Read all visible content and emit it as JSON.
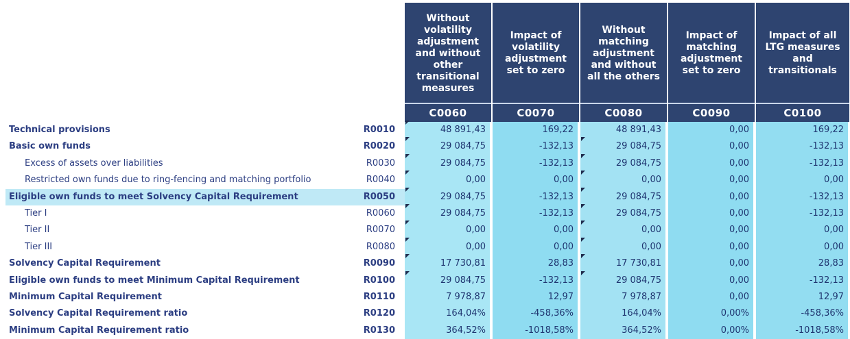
{
  "columns": [
    {
      "header": "Without volatility adjustment and without other transitional measures",
      "code": "C0060"
    },
    {
      "header": "Impact of volatility adjustment set to zero",
      "code": "C0070"
    },
    {
      "header": "Without matching adjustment and without all the others",
      "code": "C0080"
    },
    {
      "header": "Impact of matching adjustment set to zero",
      "code": "C0090"
    },
    {
      "header": "Impact of all LTG measures and transitionals",
      "code": "C0100"
    }
  ],
  "rows": [
    {
      "label": "Technical provisions",
      "code": "R0010",
      "bold": true,
      "indent": false,
      "values": [
        "48 891,43",
        "169,22",
        "48 891,43",
        "0,00",
        "169,22"
      ]
    },
    {
      "label": "Basic own funds",
      "code": "R0020",
      "bold": true,
      "indent": false,
      "values": [
        "29 084,75",
        "-132,13",
        "29 084,75",
        "0,00",
        "-132,13"
      ]
    },
    {
      "label": "Excess of assets over liabilities",
      "code": "R0030",
      "bold": false,
      "indent": true,
      "values": [
        "29 084,75",
        "-132,13",
        "29 084,75",
        "0,00",
        "-132,13"
      ]
    },
    {
      "label": "Restricted own funds due to ring-fencing and matching portfolio",
      "code": "R0040",
      "bold": false,
      "indent": true,
      "values": [
        "0,00",
        "0,00",
        "0,00",
        "0,00",
        "0,00"
      ]
    },
    {
      "label": "Eligible own funds to meet Solvency Capital Requirement",
      "code": "R0050",
      "bold": true,
      "indent": false,
      "values": [
        "29 084,75",
        "-132,13",
        "29 084,75",
        "0,00",
        "-132,13"
      ]
    },
    {
      "label": "Tier I",
      "code": "R0060",
      "bold": false,
      "indent": true,
      "values": [
        "29 084,75",
        "-132,13",
        "29 084,75",
        "0,00",
        "-132,13"
      ]
    },
    {
      "label": "Tier II",
      "code": "R0070",
      "bold": false,
      "indent": true,
      "values": [
        "0,00",
        "0,00",
        "0,00",
        "0,00",
        "0,00"
      ]
    },
    {
      "label": "Tier III",
      "code": "R0080",
      "bold": false,
      "indent": true,
      "values": [
        "0,00",
        "0,00",
        "0,00",
        "0,00",
        "0,00"
      ]
    },
    {
      "label": "Solvency Capital Requirement",
      "code": "R0090",
      "bold": true,
      "indent": false,
      "values": [
        "17 730,81",
        "28,83",
        "17 730,81",
        "0,00",
        "28,83"
      ]
    },
    {
      "label": "Eligible own funds to meet Minimum Capital Requirement",
      "code": "R0100",
      "bold": true,
      "indent": false,
      "values": [
        "29 084,75",
        "-132,13",
        "29 084,75",
        "0,00",
        "-132,13"
      ]
    },
    {
      "label": "Minimum Capital Requirement",
      "code": "R0110",
      "bold": true,
      "indent": false,
      "values": [
        "7 978,87",
        "12,97",
        "7 978,87",
        "0,00",
        "12,97"
      ]
    },
    {
      "label": "Solvency Capital Requirement ratio",
      "code": "R0120",
      "bold": true,
      "indent": false,
      "values": [
        "164,04%",
        "-458,36%",
        "164,04%",
        "0,00%",
        "-458,36%"
      ]
    },
    {
      "label": "Minimum Capital Requirement ratio",
      "code": "R0130",
      "bold": true,
      "indent": false,
      "values": [
        "364,52%",
        "-1018,58%",
        "364,52%",
        "0,00%",
        "-1018,58%"
      ]
    }
  ]
}
